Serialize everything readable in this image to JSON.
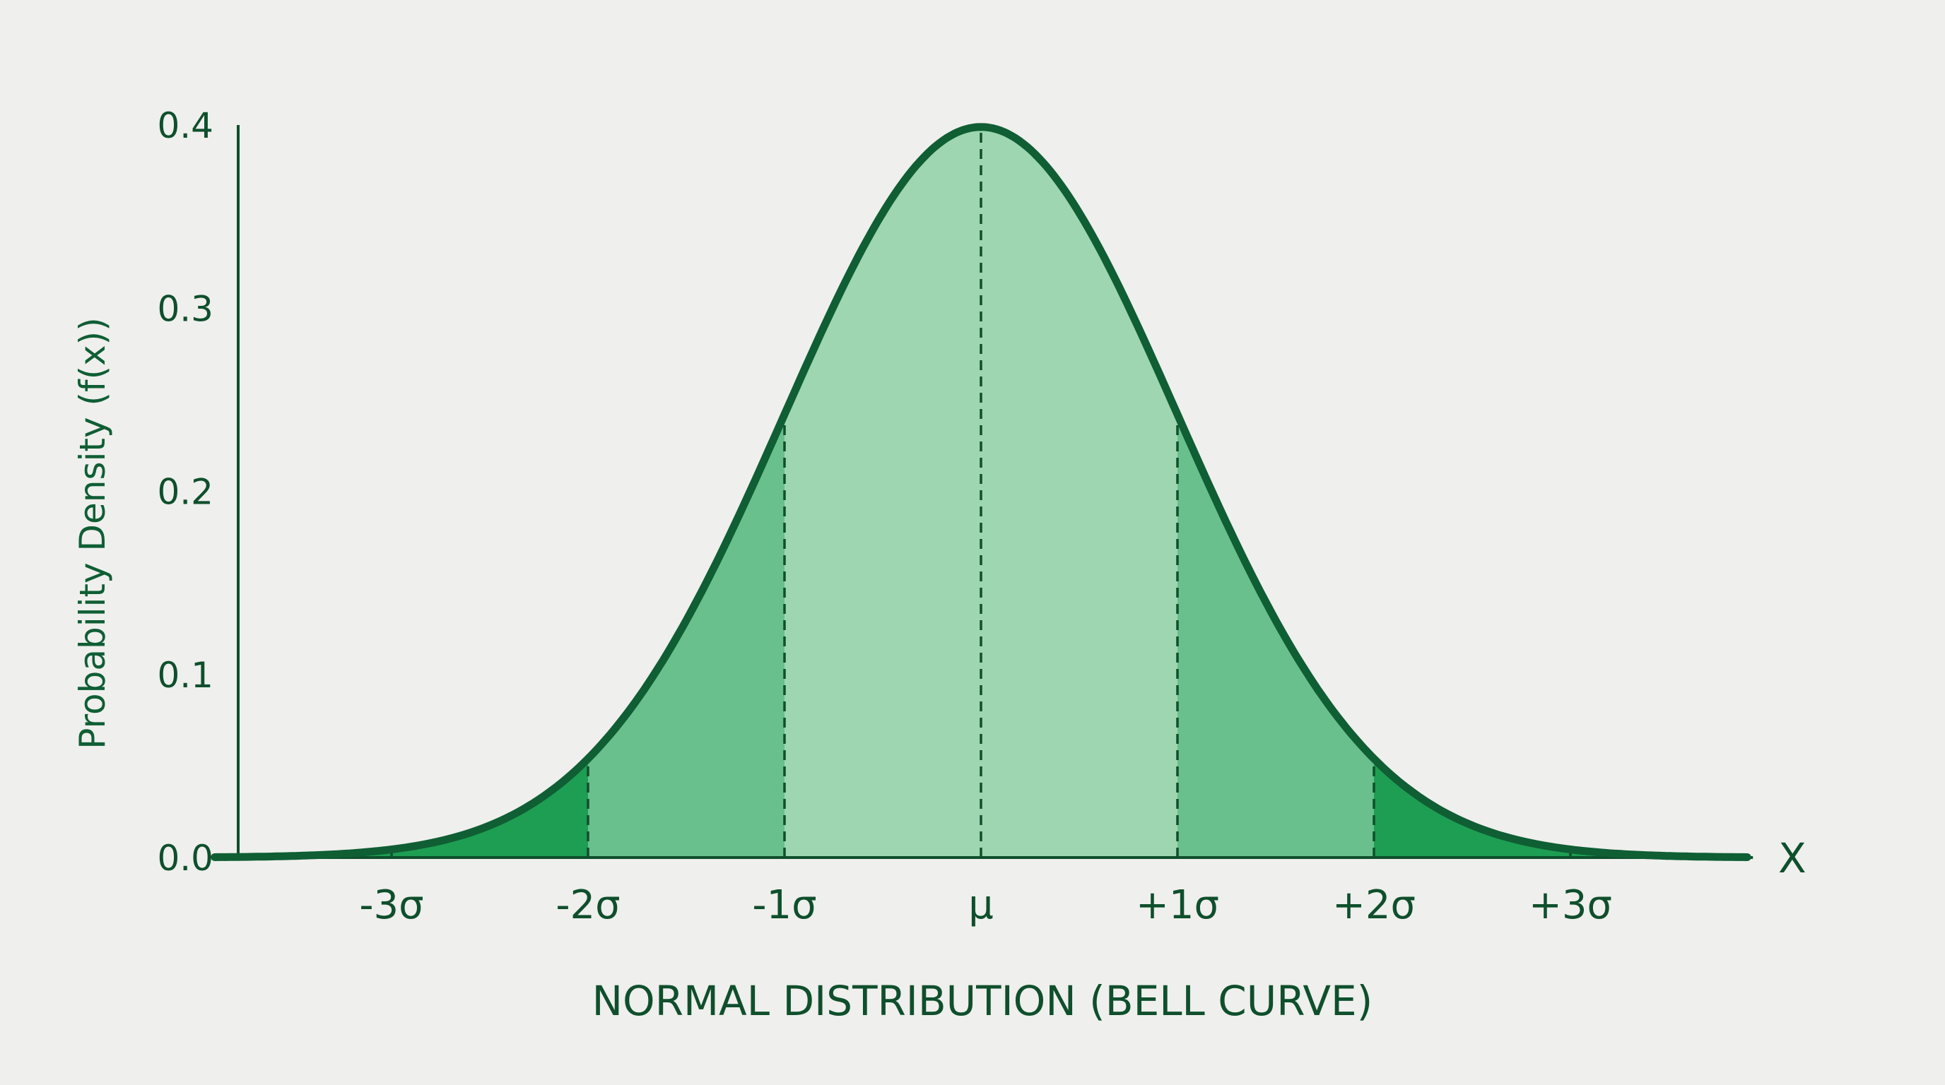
{
  "chart_data": {
    "type": "area",
    "title": "",
    "xlabel": "NORMAL DISTRIBUTION (BELL CURVE)",
    "ylabel": "Probability Density (f(x))",
    "x_axis_end_label": "X",
    "xlim": [
      -3.9,
      3.9
    ],
    "ylim": [
      0,
      0.4
    ],
    "yticks": [
      0.0,
      0.1,
      0.2,
      0.3,
      0.4
    ],
    "ytick_labels": [
      "0.0",
      "0.1",
      "0.2",
      "0.3",
      "0.4"
    ],
    "xticks": [
      -3,
      -2,
      -1,
      0,
      1,
      2,
      3
    ],
    "xtick_labels": [
      "-3σ",
      "-2σ",
      "-1σ",
      "μ",
      "+1σ",
      "+2σ",
      "+3σ"
    ],
    "distribution": {
      "name": "normal",
      "mean": 0,
      "sd": 1,
      "peak_density": 0.399
    },
    "series": [
      {
        "x": [
          -3.9,
          -3,
          -2,
          -1,
          0,
          1,
          2,
          3,
          3.9
        ],
        "values": [
          0.0002,
          0.0044,
          0.054,
          0.242,
          0.399,
          0.242,
          0.054,
          0.0044,
          0.0002
        ]
      }
    ],
    "bands": [
      {
        "from": -1,
        "to": 1,
        "color": "#9dd6b0"
      },
      {
        "from": -2,
        "to": -1,
        "color": "#69c08c"
      },
      {
        "from": 1,
        "to": 2,
        "color": "#69c08c"
      },
      {
        "from": -3.9,
        "to": -2,
        "color": "#1e9e52"
      },
      {
        "from": 2,
        "to": 3.9,
        "color": "#1e9e52"
      }
    ],
    "grid": false,
    "legend": "none",
    "colors": {
      "curve": "#0f5e34",
      "axis": "#0f4f2c",
      "text": "#0f4f2c",
      "background": "#efefed"
    }
  }
}
